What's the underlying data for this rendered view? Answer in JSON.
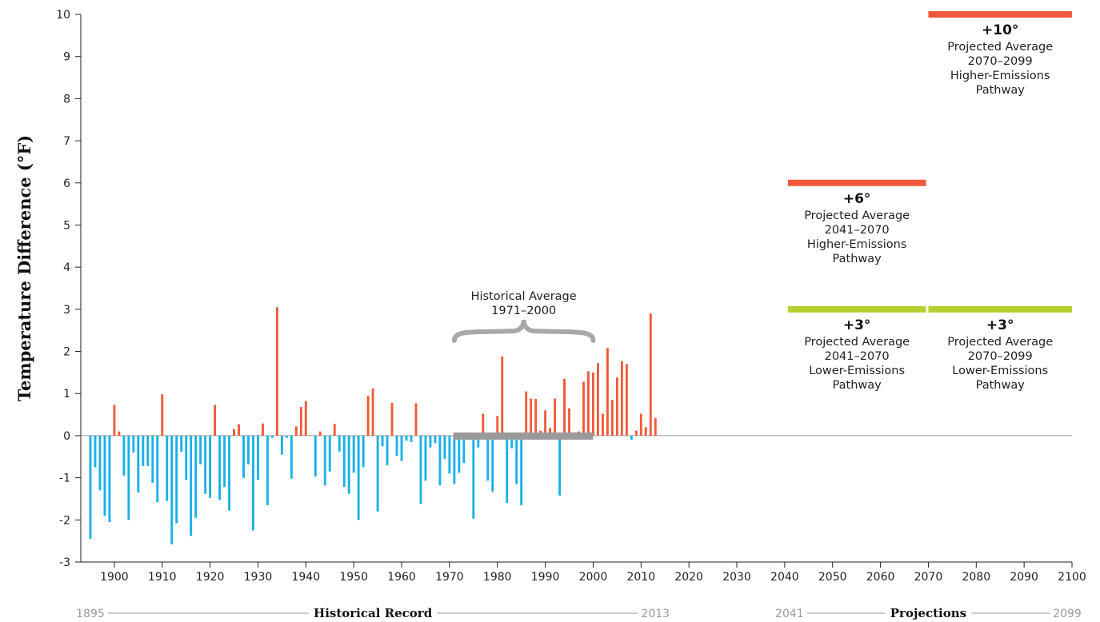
{
  "chart_data": {
    "type": "bar",
    "ylabel": "Temperature Difference (°F)",
    "xlabel": "",
    "ylim": [
      -3,
      10
    ],
    "xlim": [
      1893,
      2100
    ],
    "y_ticks": [
      -3,
      -2,
      -1,
      0,
      1,
      2,
      3,
      4,
      5,
      6,
      7,
      8,
      9,
      10
    ],
    "x_ticks": [
      1900,
      1910,
      1920,
      1930,
      1940,
      1950,
      1960,
      1970,
      1980,
      1990,
      2000,
      2010,
      2020,
      2030,
      2040,
      2050,
      2060,
      2070,
      2080,
      2090,
      2100
    ],
    "colors": {
      "above": "#f05a3a",
      "below": "#1ab0e6",
      "baseline": "#9a9a9a",
      "historical_band": "#9a9a9a",
      "higher_emissions": "#f05a3a",
      "lower_emissions": "#b5cf2e"
    },
    "x": [
      1895,
      1896,
      1897,
      1898,
      1899,
      1900,
      1901,
      1902,
      1903,
      1904,
      1905,
      1906,
      1907,
      1908,
      1909,
      1910,
      1911,
      1912,
      1913,
      1914,
      1915,
      1916,
      1917,
      1918,
      1919,
      1920,
      1921,
      1922,
      1923,
      1924,
      1925,
      1926,
      1927,
      1928,
      1929,
      1930,
      1931,
      1932,
      1933,
      1934,
      1935,
      1936,
      1937,
      1938,
      1939,
      1940,
      1941,
      1942,
      1943,
      1944,
      1945,
      1946,
      1947,
      1948,
      1949,
      1950,
      1951,
      1952,
      1953,
      1954,
      1955,
      1956,
      1957,
      1958,
      1959,
      1960,
      1961,
      1962,
      1963,
      1964,
      1965,
      1966,
      1967,
      1968,
      1969,
      1970,
      1971,
      1972,
      1973,
      1974,
      1975,
      1976,
      1977,
      1978,
      1979,
      1980,
      1981,
      1982,
      1983,
      1984,
      1985,
      1986,
      1987,
      1988,
      1989,
      1990,
      1991,
      1992,
      1993,
      1994,
      1995,
      1996,
      1997,
      1998,
      1999,
      2000,
      2001,
      2002,
      2003,
      2004,
      2005,
      2006,
      2007,
      2008,
      2009,
      2010,
      2011,
      2012,
      2013
    ],
    "values": [
      -2.45,
      -0.75,
      -1.3,
      -1.9,
      -2.05,
      0.73,
      0.1,
      -0.95,
      -2.0,
      -0.4,
      -1.35,
      -0.72,
      -0.72,
      -1.12,
      -1.58,
      0.98,
      -1.55,
      -2.58,
      -2.08,
      -0.38,
      -1.05,
      -2.38,
      -1.95,
      -0.68,
      -1.38,
      -1.48,
      0.73,
      -1.52,
      -1.22,
      -1.78,
      0.15,
      0.27,
      -1.0,
      -0.68,
      -2.25,
      -1.05,
      0.29,
      -1.65,
      -0.05,
      3.05,
      -0.45,
      -0.05,
      -1.02,
      0.22,
      0.68,
      0.82,
      0.0,
      -0.97,
      0.1,
      -1.18,
      -0.85,
      0.28,
      -0.38,
      -1.22,
      -1.38,
      -0.88,
      -2.0,
      -0.75,
      0.95,
      1.12,
      -1.8,
      -0.25,
      -0.7,
      0.78,
      -0.48,
      -0.6,
      -0.12,
      -0.15,
      0.77,
      -1.62,
      -1.07,
      -0.28,
      -0.18,
      -1.18,
      -0.55,
      -0.9,
      -1.15,
      -0.88,
      -0.65,
      -0.1,
      -1.97,
      -0.28,
      0.52,
      -1.07,
      -1.33,
      0.47,
      1.88,
      -1.6,
      -0.3,
      -1.15,
      -1.65,
      1.05,
      0.88,
      0.87,
      0.12,
      0.6,
      0.18,
      0.88,
      -1.42,
      1.35,
      0.65,
      0.08,
      0.1,
      1.28,
      1.53,
      1.5,
      1.72,
      0.52,
      2.08,
      0.85,
      1.38,
      1.77,
      1.7,
      -0.1,
      0.12,
      0.52,
      0.2,
      2.9,
      0.42
    ],
    "historical_average": {
      "label": [
        "Historical Average",
        "1971–2000"
      ],
      "start": 1971,
      "end": 2000,
      "value": 0
    },
    "projections": [
      {
        "value": 10,
        "start": 2071,
        "end": 2100,
        "color": "#f05a3a",
        "big": "+10°",
        "lines": [
          "Projected Average",
          "2070–2099",
          "Higher-Emissions",
          "Pathway"
        ]
      },
      {
        "value": 6,
        "start": 2041,
        "end": 2070,
        "color": "#f05a3a",
        "big": "+6°",
        "lines": [
          "Projected Average",
          "2041–2070",
          "Higher-Emissions",
          "Pathway"
        ]
      },
      {
        "value": 3,
        "start": 2041,
        "end": 2070,
        "color": "#b5cf2e",
        "big": "+3°",
        "lines": [
          "Projected Average",
          "2041–2070",
          "Lower-Emissions",
          "Pathway"
        ]
      },
      {
        "value": 3,
        "start": 2071,
        "end": 2100,
        "color": "#b5cf2e",
        "big": "+3°",
        "lines": [
          "Projected Average",
          "2070–2099",
          "Lower-Emissions",
          "Pathway"
        ]
      }
    ],
    "ranges": [
      {
        "start_label": "1895",
        "title": "Historical Record",
        "end_label": "2013",
        "start": 1895,
        "end": 2013
      },
      {
        "start_label": "2041",
        "title": "Projections",
        "end_label": "2099",
        "start": 2041,
        "end": 2099
      }
    ]
  }
}
